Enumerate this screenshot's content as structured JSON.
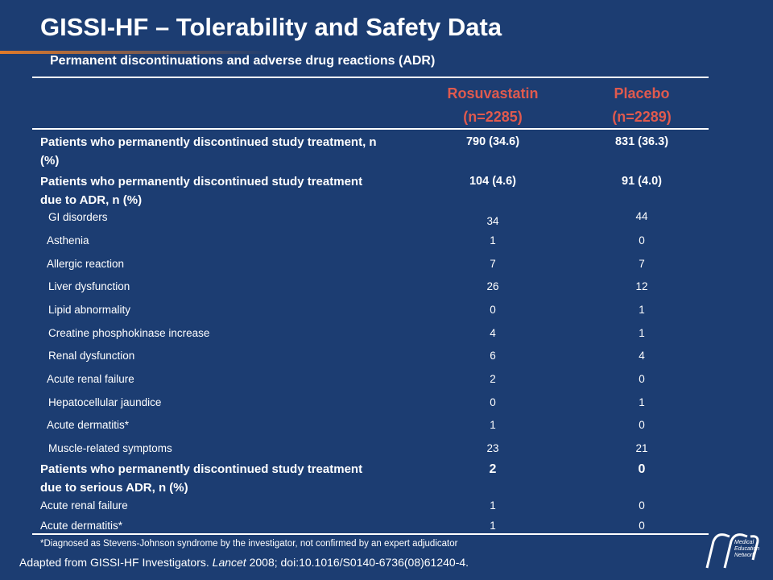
{
  "title": "GISSI-HF – Tolerability and Safety Data",
  "subtitle": "Permanent discontinuations and adverse drug reactions (ADR)",
  "table": {
    "columns": [
      {
        "name": "Rosuvastatin",
        "n": "(n=2285)"
      },
      {
        "name": "Placebo",
        "n": "(n=2289)"
      }
    ],
    "sections": [
      {
        "label": "Patients who permanently discontinued study treatment, n (%)",
        "values": [
          "790 (34.6)",
          "831 (36.3)"
        ],
        "items": []
      },
      {
        "label": "Patients who permanently discontinued study treatment due to ADR, n (%)",
        "values": [
          "104 (4.6)",
          "91 (4.0)"
        ],
        "items": [
          {
            "label": "GI disorders",
            "values": [
              34,
              44
            ]
          },
          {
            "label": "Asthenia",
            "values": [
              1,
              0
            ]
          },
          {
            "label": "Allergic reaction",
            "values": [
              7,
              7
            ]
          },
          {
            "label": "Liver dysfunction",
            "values": [
              26,
              12
            ]
          },
          {
            "label": "Lipid abnormality",
            "values": [
              0,
              1
            ]
          },
          {
            "label": "Creatine phosphokinase increase",
            "values": [
              4,
              1
            ]
          },
          {
            "label": "Renal dysfunction",
            "values": [
              6,
              4
            ]
          },
          {
            "label": "Acute renal failure",
            "values": [
              2,
              0
            ]
          },
          {
            "label": "Hepatocellular jaundice",
            "values": [
              0,
              1
            ]
          },
          {
            "label": "Acute dermatitis*",
            "values": [
              1,
              0
            ]
          },
          {
            "label": "Muscle-related symptoms",
            "values": [
              23,
              21
            ]
          }
        ]
      },
      {
        "label": "Patients who permanently discontinued study treatment due to serious ADR, n (%)",
        "values": [
          "2",
          "0"
        ],
        "items": [
          {
            "label": "Acute renal failure",
            "values": [
              1,
              0
            ]
          },
          {
            "label": "Acute dermatitis*",
            "values": [
              1,
              0
            ]
          }
        ]
      }
    ]
  },
  "footnote": "*Diagnosed as Stevens-Johnson syndrome by the investigator, not confirmed by an expert adjudicator",
  "citation": {
    "before": "Adapted from GISSI-HF Investigators. ",
    "journal": "Lancet",
    "after": " 2008; doi:10.1016/S0140-6736(08)61240-4."
  },
  "logo": {
    "lines": [
      "Medical",
      "Education",
      "Network"
    ]
  }
}
